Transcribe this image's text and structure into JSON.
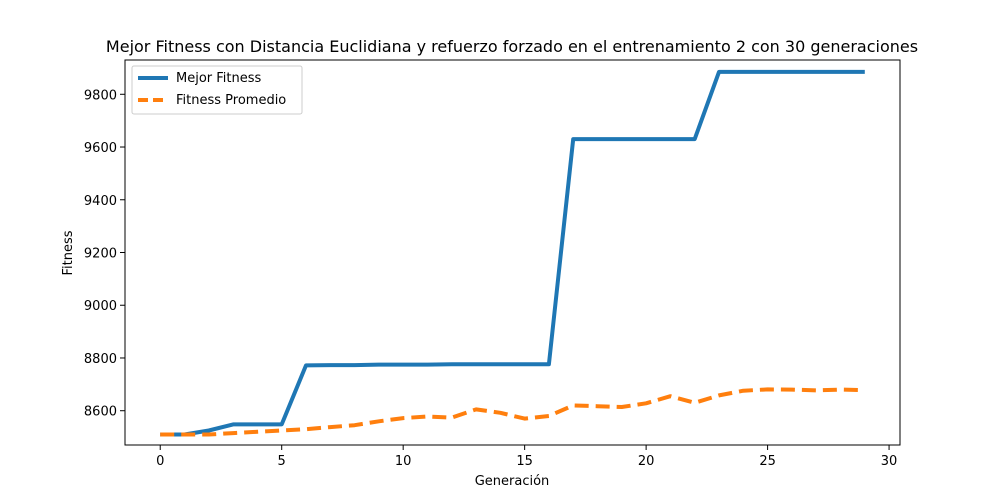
{
  "chart_data": {
    "type": "line",
    "title": "Mejor Fitness con Distancia Euclidiana y refuerzo forzado en el entrenamiento 2 con 30 generaciones",
    "xlabel": "Generación",
    "ylabel": "Fitness",
    "xlim": [
      -1.45,
      30.45
    ],
    "ylim": [
      8470,
      9930
    ],
    "xticks": [
      0,
      5,
      10,
      15,
      20,
      25,
      30
    ],
    "yticks": [
      8600,
      8800,
      9000,
      9200,
      9400,
      9600,
      9800
    ],
    "grid": false,
    "legend": "top-left",
    "x": [
      0,
      1,
      2,
      3,
      4,
      5,
      6,
      7,
      8,
      9,
      10,
      11,
      12,
      13,
      14,
      15,
      16,
      17,
      18,
      19,
      20,
      21,
      22,
      23,
      24,
      25,
      26,
      27,
      28,
      29
    ],
    "series": [
      {
        "name": "Mejor Fitness",
        "color": "#1f77b4",
        "style": "solid",
        "values": [
          8510,
          8510,
          8525,
          8548,
          8548,
          8548,
          8772,
          8773,
          8773,
          8775,
          8775,
          8775,
          8776,
          8776,
          8776,
          8776,
          8776,
          9630,
          9630,
          9630,
          9630,
          9630,
          9630,
          9885,
          9885,
          9885,
          9885,
          9885,
          9885,
          9885
        ]
      },
      {
        "name": "Fitness Promedio",
        "color": "#ff7f0e",
        "style": "dashed",
        "values": [
          8510,
          8510,
          8510,
          8515,
          8520,
          8525,
          8530,
          8538,
          8545,
          8560,
          8572,
          8578,
          8574,
          8605,
          8592,
          8570,
          8580,
          8620,
          8617,
          8614,
          8628,
          8655,
          8630,
          8658,
          8676,
          8681,
          8680,
          8677,
          8680,
          8678
        ]
      }
    ]
  }
}
